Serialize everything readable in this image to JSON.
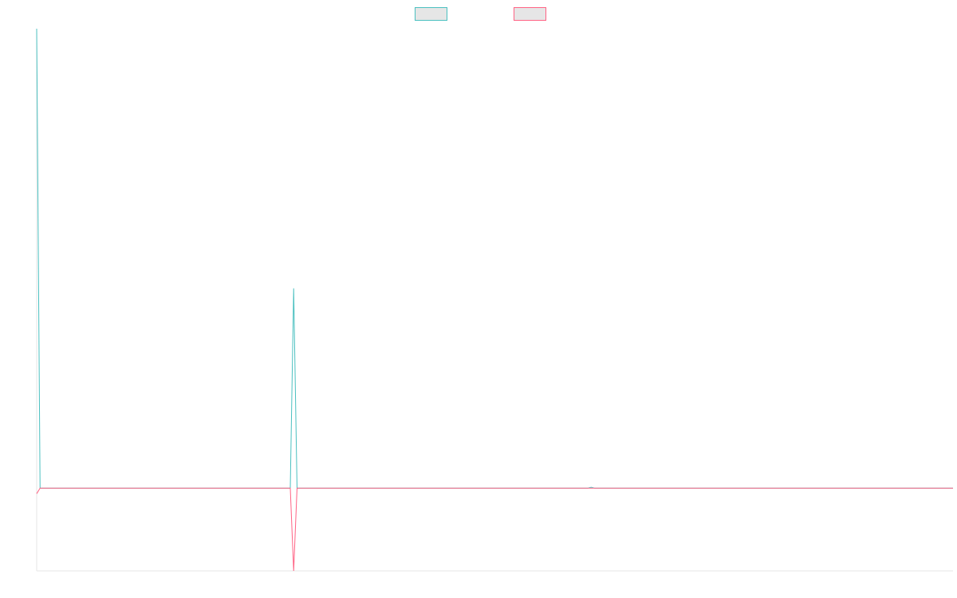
{
  "chart_data": {
    "type": "line",
    "title": "",
    "xlabel": "",
    "ylabel": "",
    "grid": false,
    "legend_position": "top-center",
    "x": [
      0,
      1,
      75,
      76,
      77,
      163,
      164,
      165,
      271
    ],
    "xlim": [
      0,
      271
    ],
    "ylim": [
      -0.18,
      1.0
    ],
    "series": [
      {
        "name": "",
        "color": "#4bc0c0",
        "values": [
          1.0,
          0.0,
          0.0,
          0.435,
          0.0,
          0.0,
          0.002,
          0.0,
          0.0
        ]
      },
      {
        "name": "",
        "color": "#ff6384",
        "values": [
          -0.012,
          0.0,
          0.0,
          -0.18,
          0.0,
          0.0,
          0.0,
          0.0,
          0.0
        ]
      }
    ],
    "colors": {
      "axis": "#e5e5e5",
      "legend_fill": "#e6e6e6"
    }
  }
}
